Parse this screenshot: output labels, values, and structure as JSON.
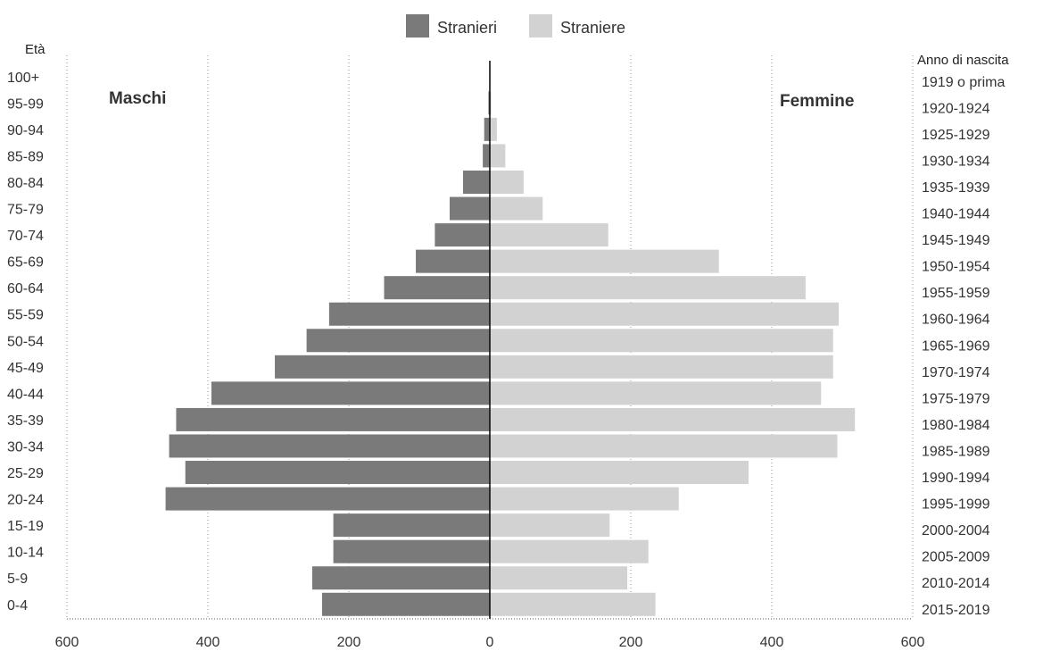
{
  "chart_data": {
    "type": "bar",
    "orientation": "horizontal",
    "subtype": "population-pyramid",
    "title": "",
    "legend": [
      {
        "label": "Stranieri",
        "color": "#7a7a7a"
      },
      {
        "label": "Straniere",
        "color": "#d2d2d2"
      }
    ],
    "legend_position": "top-center",
    "left_label": "Maschi",
    "right_label": "Femmine",
    "y_left_title": "Età",
    "y_right_title": "Anno di nascita",
    "x_ticks": [
      "600",
      "400",
      "200",
      "0",
      "200",
      "400",
      "600"
    ],
    "xlim": [
      -600,
      600
    ],
    "grid": true,
    "age_groups": [
      "100+",
      "95-99",
      "90-94",
      "85-89",
      "80-84",
      "75-79",
      "70-74",
      "65-69",
      "60-64",
      "55-59",
      "50-54",
      "45-49",
      "40-44",
      "35-39",
      "30-34",
      "25-29",
      "20-24",
      "15-19",
      "10-14",
      "5-9",
      "0-4"
    ],
    "birth_years": [
      "1919 o prima",
      "1920-1924",
      "1925-1929",
      "1930-1934",
      "1935-1939",
      "1940-1944",
      "1945-1949",
      "1950-1954",
      "1955-1959",
      "1960-1964",
      "1965-1969",
      "1970-1974",
      "1975-1979",
      "1980-1984",
      "1985-1989",
      "1990-1994",
      "1995-1999",
      "2000-2004",
      "2005-2009",
      "2010-2014",
      "2015-2019"
    ],
    "series": [
      {
        "name": "Stranieri",
        "side": "left",
        "values": [
          0,
          2,
          8,
          10,
          38,
          57,
          78,
          105,
          150,
          228,
          260,
          305,
          395,
          445,
          455,
          432,
          460,
          222,
          222,
          252,
          238
        ]
      },
      {
        "name": "Straniere",
        "side": "right",
        "values": [
          0,
          2,
          10,
          22,
          48,
          75,
          168,
          325,
          448,
          495,
          487,
          487,
          470,
          518,
          493,
          367,
          268,
          170,
          225,
          195,
          235
        ]
      }
    ]
  }
}
